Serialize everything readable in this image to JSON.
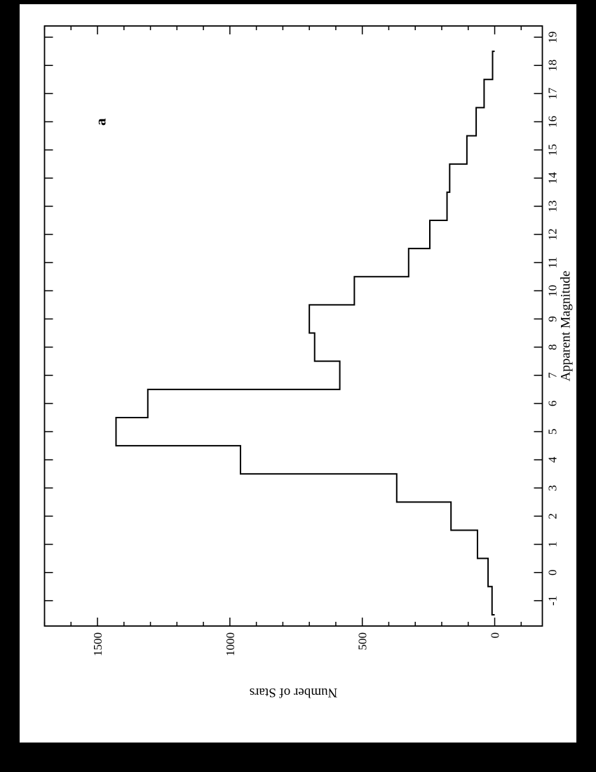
{
  "page": {
    "background": "#000000",
    "paper_color": "#ffffff",
    "ink_color": "#000000"
  },
  "chart_data": {
    "type": "bar",
    "style": "step-histogram",
    "panel_label": "a",
    "xlabel": "Apparent Magnitude",
    "ylabel": "Number of Stars",
    "xlim": [
      -1.9,
      19.4
    ],
    "ylim": [
      -180,
      1700
    ],
    "grid": false,
    "legend": "none",
    "x_major_ticks": [
      -1,
      0,
      1,
      2,
      3,
      4,
      5,
      6,
      7,
      8,
      9,
      10,
      11,
      12,
      13,
      14,
      15,
      16,
      17,
      18,
      19
    ],
    "x_tick_labels": [
      "-1",
      "0",
      "1",
      "2",
      "3",
      "4",
      "5",
      "6",
      "7",
      "8",
      "9",
      "10",
      "11",
      "12",
      "13",
      "14",
      "15",
      "16",
      "17",
      "18",
      "19"
    ],
    "y_major_ticks": [
      0,
      500,
      1000,
      1500
    ],
    "y_tick_labels": [
      "0",
      "500",
      "1000",
      "1500"
    ],
    "y_minor_step": 100,
    "bin_edges": [
      -1.5,
      -0.5,
      0.5,
      1.5,
      2.5,
      3.5,
      4.5,
      5.5,
      6.5,
      7.5,
      8.5,
      9.5,
      10.5,
      11.5,
      12.5,
      13.5,
      14.5,
      15.5,
      16.5,
      17.5,
      18.5
    ],
    "counts": [
      10,
      25,
      65,
      165,
      370,
      960,
      1430,
      1310,
      585,
      680,
      700,
      530,
      325,
      245,
      180,
      170,
      105,
      70,
      40,
      8
    ]
  }
}
